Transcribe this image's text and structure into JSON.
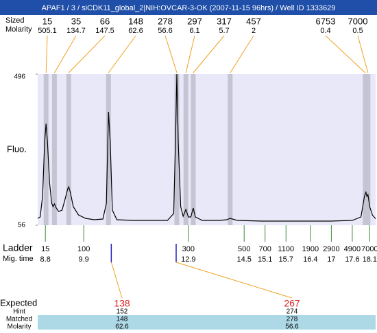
{
  "title": "APAF1 / 3 / siCDK11_global_2|NIH:OVCAR-3-OK (2007-11-15 96hrs) / Well ID 1333629",
  "chart_data": {
    "type": "electropherogram",
    "y_label": "Fluo.",
    "ylim": [
      56,
      496
    ],
    "yticks": [
      56,
      496
    ],
    "xlim": [
      8.58,
      18.27
    ],
    "x": [
      8.58,
      8.65,
      8.72,
      8.78,
      8.82,
      8.86,
      8.92,
      8.98,
      9.02,
      9.06,
      9.1,
      9.18,
      9.28,
      9.36,
      9.44,
      9.47,
      9.52,
      9.6,
      9.75,
      9.95,
      10.2,
      10.45,
      10.55,
      10.61,
      10.66,
      10.72,
      10.85,
      11.3,
      11.8,
      12.3,
      12.48,
      12.53,
      12.57,
      12.61,
      12.68,
      12.75,
      12.83,
      12.9,
      12.97,
      13.04,
      13.1,
      13.3,
      13.8,
      14.0,
      14.1,
      14.3,
      15.0,
      16.0,
      17.0,
      17.6,
      17.85,
      17.95,
      17.99,
      18.02,
      18.05,
      18.1,
      18.18,
      18.27
    ],
    "series": [
      {
        "color": "#000000",
        "values": [
          76,
          80,
          140,
          300,
          352,
          300,
          180,
          120,
          110,
          118,
          108,
          96,
          100,
          130,
          162,
          168,
          150,
          110,
          86,
          76,
          72,
          74,
          120,
          386,
          300,
          100,
          72,
          70,
          70,
          70,
          90,
          300,
          496,
          300,
          110,
          82,
          102,
          80,
          80,
          106,
          80,
          70,
          70,
          72,
          76,
          70,
          68,
          68,
          68,
          70,
          80,
          140,
          152,
          140,
          145,
          110,
          85,
          75
        ]
      }
    ],
    "peaks": {
      "row_labels": [
        "Sized",
        "Molarity"
      ],
      "sizes": [
        15,
        35,
        66,
        148,
        278,
        297,
        317,
        457,
        6753,
        7000
      ],
      "molarities": [
        505.1,
        134.7,
        147.5,
        62.6,
        56.6,
        6.1,
        5.7,
        2,
        0.4,
        0.5
      ],
      "times": [
        8.82,
        9.06,
        9.47,
        10.61,
        12.57,
        12.83,
        13.04,
        14.1,
        17.97,
        18.05
      ]
    },
    "ladder": {
      "label": "Ladder",
      "time_label": "Mig. time",
      "sizes": [
        15,
        100,
        300,
        500,
        700,
        1100,
        1900,
        2900,
        4900,
        7000
      ],
      "times": [
        8.8,
        9.9,
        12.9,
        14.5,
        15.1,
        15.7,
        16.4,
        17,
        17.6,
        18.1
      ]
    },
    "expected": {
      "row_labels": [
        "Expected",
        "Hint",
        "Matched",
        "Molarity"
      ],
      "expected": [
        138,
        267
      ],
      "hint": [
        152,
        274
      ],
      "matched": [
        148,
        278
      ],
      "molarity": [
        62.6,
        56.6
      ],
      "times": [
        10.69,
        12.55
      ]
    }
  }
}
